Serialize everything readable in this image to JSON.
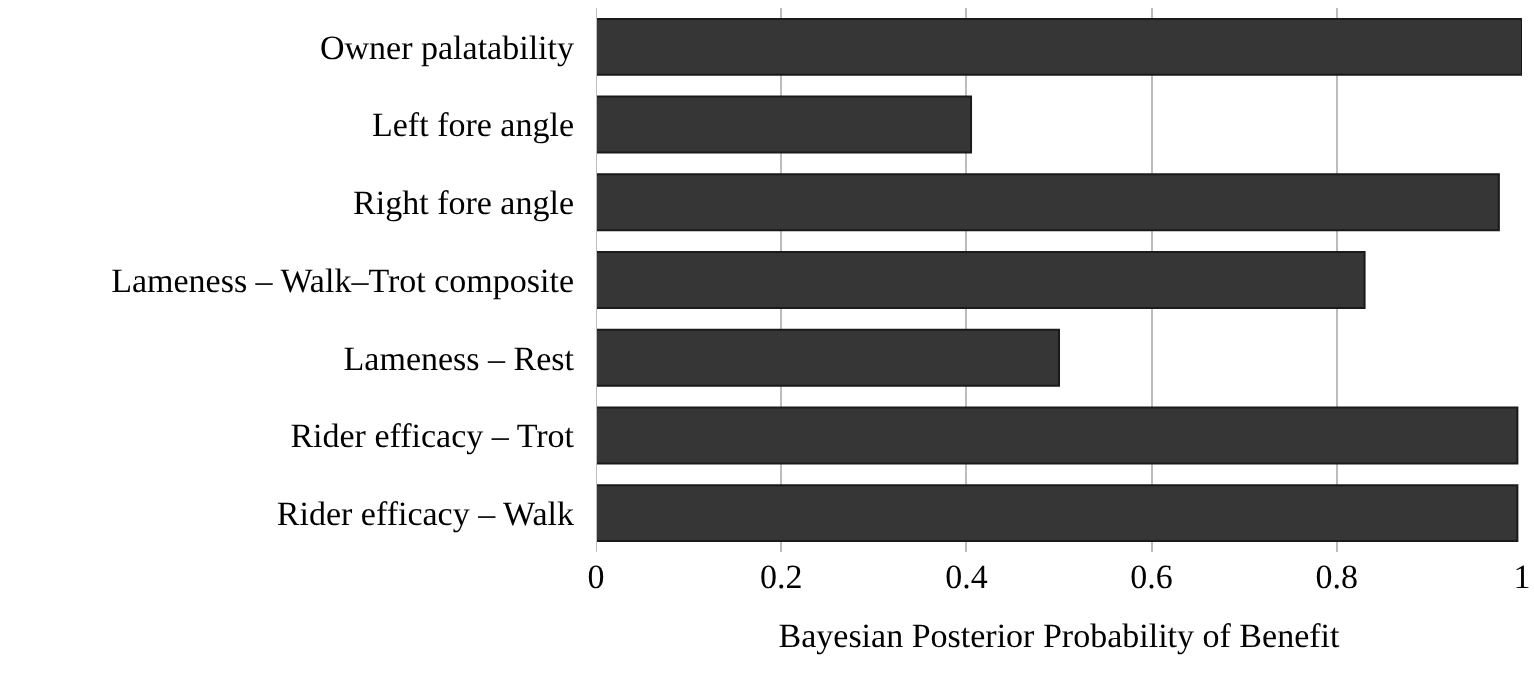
{
  "chart_data": {
    "type": "bar",
    "orientation": "horizontal",
    "categories": [
      "Owner palatability",
      "Left fore angle",
      "Right fore angle",
      "Lameness – Walk–Trot composite",
      "Lameness – Rest",
      "Rider efficacy – Trot",
      "Rider efficacy – Walk"
    ],
    "values": [
      1.0,
      0.405,
      0.975,
      0.83,
      0.5,
      0.995,
      0.995
    ],
    "color": "#363636",
    "xlabel": "Bayesian Posterior Probability of Benefit",
    "xlim": [
      0,
      1
    ],
    "xticks": [
      0,
      {
        "value": 0.2,
        "label": "0.2"
      },
      {
        "value": 0.4,
        "label": "0.4"
      },
      {
        "value": 0.6,
        "label": "0.6"
      },
      {
        "value": 0.8,
        "label": "0.8"
      },
      1
    ],
    "grid": "x",
    "legend": false
  }
}
